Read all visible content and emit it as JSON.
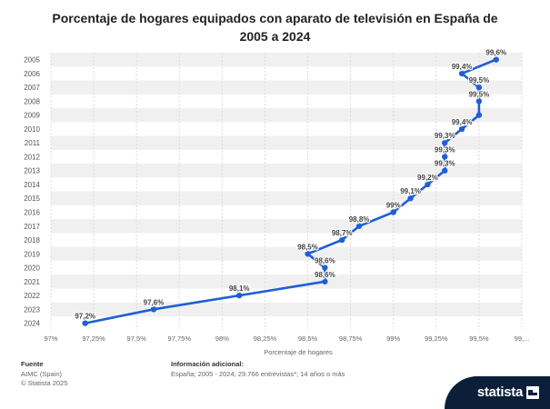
{
  "chart_data": {
    "type": "line",
    "title": "Porcentaje de hogares equipados con aparato de televisión en España de 2005 a 2024",
    "xlabel": "Porcentaje de hogares",
    "ylabel": "",
    "categories": [
      "2005",
      "2006",
      "2007",
      "2008",
      "2009",
      "2010",
      "2011",
      "2012",
      "2013",
      "2014",
      "2015",
      "2016",
      "2017",
      "2018",
      "2019",
      "2020",
      "2021",
      "2022",
      "2023",
      "2024"
    ],
    "values": [
      99.6,
      99.4,
      99.5,
      99.5,
      99.5,
      99.4,
      99.3,
      99.3,
      99.3,
      99.2,
      99.1,
      99.0,
      98.8,
      98.7,
      98.5,
      98.6,
      98.6,
      98.1,
      97.6,
      97.2
    ],
    "value_labels": [
      "99,6%",
      "99,4%",
      "99,5%",
      "99,5%",
      "",
      "99,4%",
      "99,3%",
      "99,3%",
      "99,3%",
      "99,2%",
      "99,1%",
      "99%",
      "98,8%",
      "98,7%",
      "98,5%",
      "98,6%",
      "98,6%",
      "98,1%",
      "97,6%",
      "97,2%"
    ],
    "xlim": [
      97,
      99.75
    ],
    "x_ticks": [
      97,
      97.25,
      97.5,
      97.75,
      98,
      98.25,
      98.5,
      98.75,
      99,
      99.25,
      99.5,
      99.75
    ],
    "x_tick_labels": [
      "97%",
      "97,25%",
      "97,5%",
      "97,75%",
      "98%",
      "98,25%",
      "98,5%",
      "98,75%",
      "99%",
      "99,25%",
      "99,5%",
      "99,..."
    ],
    "grid": true,
    "legend": "none",
    "line_color": "#1f5fd6",
    "band_color": "#f0f0f0"
  },
  "source": {
    "heading": "Fuente",
    "lines": [
      "AIMC (Spain)",
      "© Statista 2025"
    ]
  },
  "info": {
    "heading": "Información adicional:",
    "text": "España; 2005 - 2024; 29.766 entrevistas*; 14 años o más"
  },
  "brand": {
    "name": "statista",
    "background": "#0b1f3a",
    "icon": "statista-logo-icon"
  }
}
